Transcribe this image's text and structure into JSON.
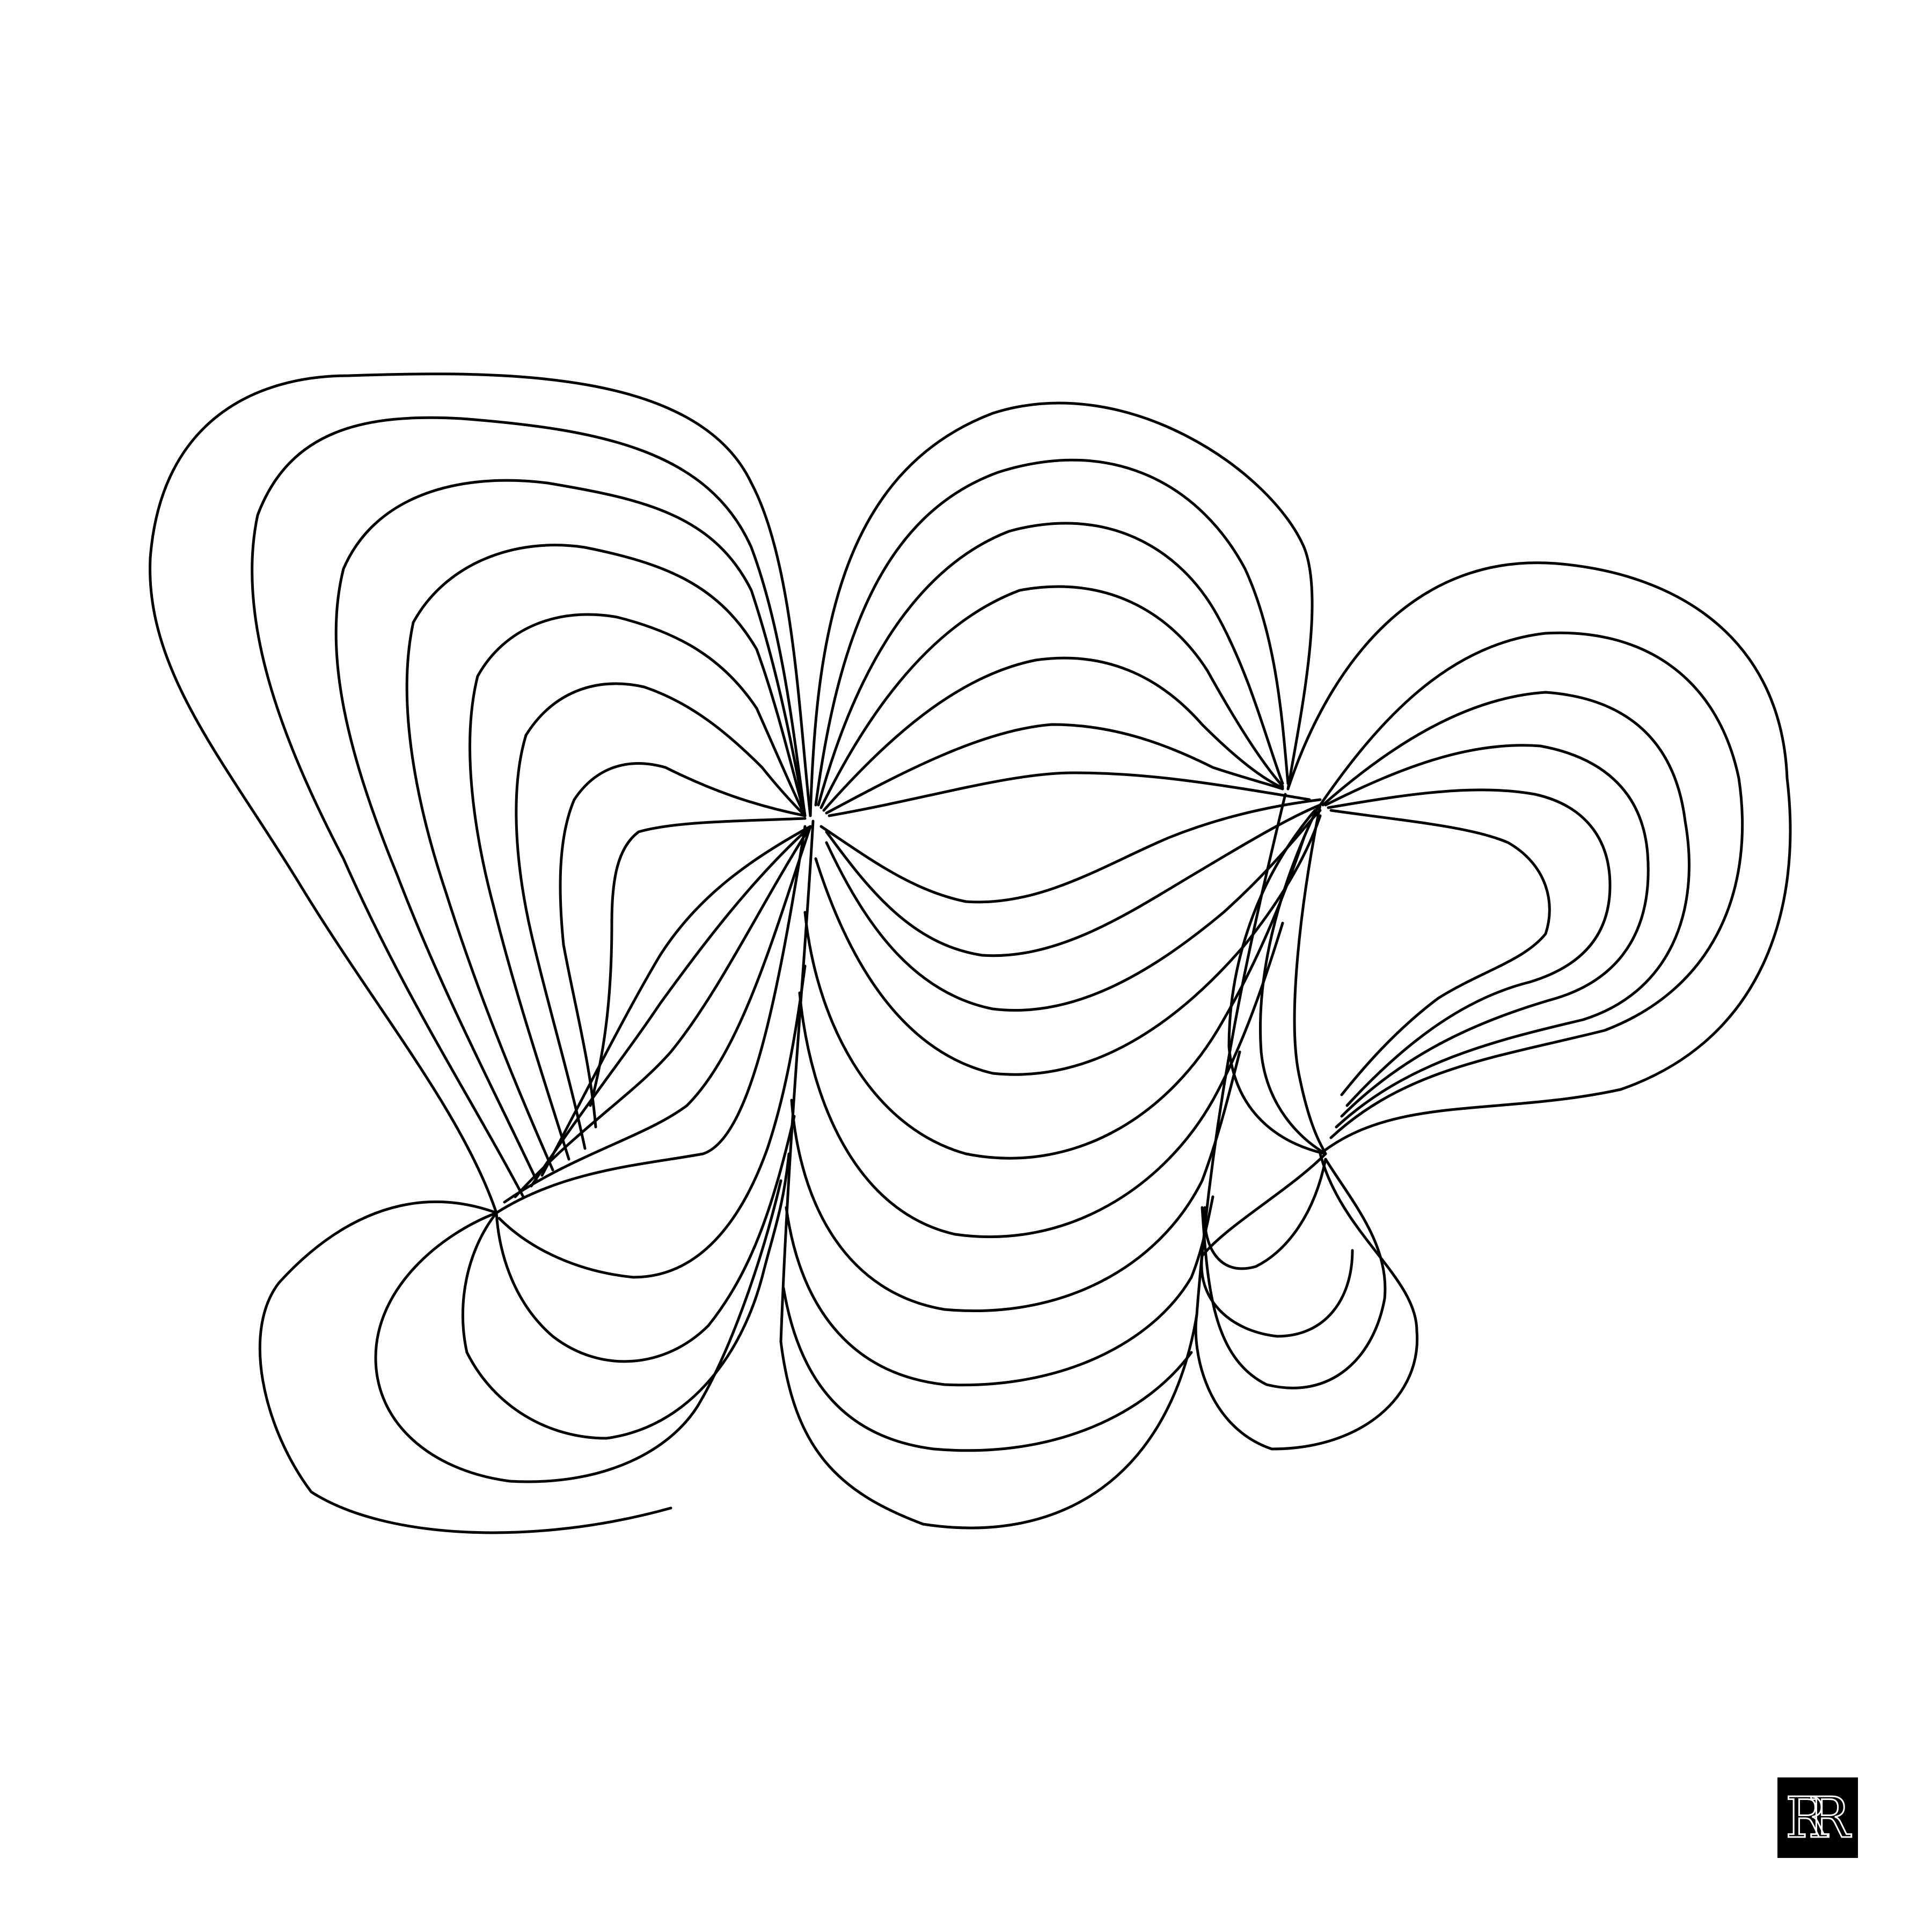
{
  "artwork": {
    "background_color": "#ffffff",
    "line_color": "#000000"
  },
  "signature": {
    "monogram": "RR",
    "background_color": "#000000",
    "text_color": "#ffffff"
  }
}
